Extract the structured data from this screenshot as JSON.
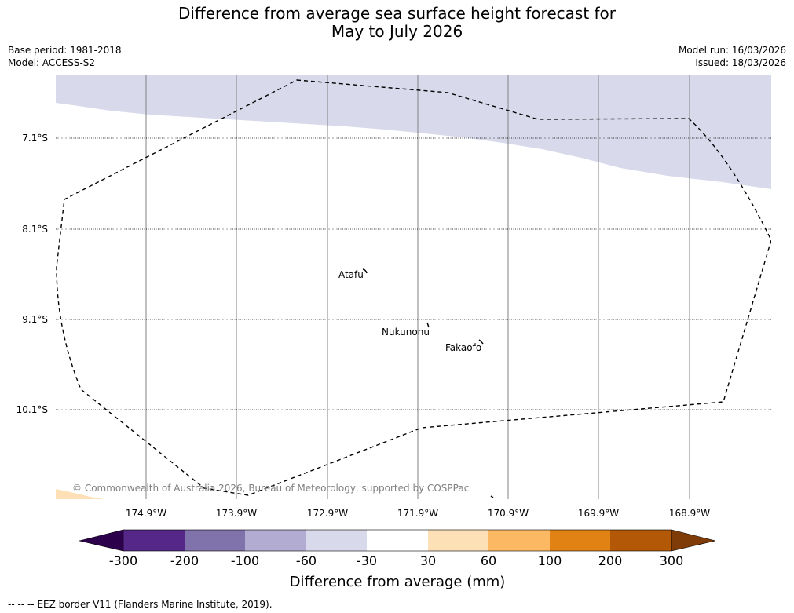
{
  "title": {
    "line1": "Difference from average sea surface height forecast for",
    "line2": "May to July 2026"
  },
  "meta": {
    "base_period": "Base period: 1981-2018",
    "model": "Model: ACCESS-S2",
    "model_run": "Model run: 16/03/2026",
    "issued": "Issued: 18/03/2026"
  },
  "axes": {
    "latitudes": [
      "7.1°S",
      "8.1°S",
      "9.1°S",
      "10.1°S"
    ],
    "longitudes": [
      "174.9°W",
      "173.9°W",
      "172.9°W",
      "171.9°W",
      "170.9°W",
      "169.9°W",
      "168.9°W"
    ]
  },
  "places": {
    "atafu": "Atafu",
    "nukunonu": "Nukunonu",
    "fakaofo": "Fakaofo"
  },
  "copyright": "© Commonwealth of Australia 2026, Bureau of Meteorology, supported by COSPPac",
  "colorbar": {
    "title": "Difference from average (mm)",
    "ticks": [
      "-300",
      "-200",
      "-100",
      "-60",
      "-30",
      "30",
      "60",
      "100",
      "200",
      "300"
    ],
    "colors": [
      "#2d004b",
      "#542788",
      "#8073ac",
      "#b2abd2",
      "#d8daeb",
      "#ffffff",
      "#fee0b6",
      "#fdb863",
      "#e08214",
      "#b35806",
      "#7f3b08"
    ]
  },
  "legend_note": "-- EEZ border V11 (Flanders Marine Institute, 2019).",
  "legend_dashes": "--  --"
}
